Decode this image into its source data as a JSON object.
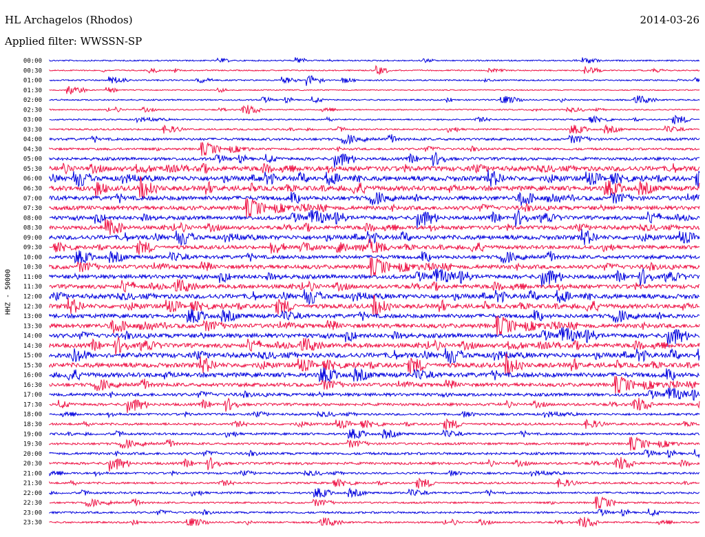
{
  "header": {
    "station": "HL Archagelos (Rhodos)",
    "date": "2014-03-26",
    "filter": "Applied filter: WWSSN-SP"
  },
  "chart_data": {
    "type": "line",
    "title": "HL Archagelos (Rhodos)",
    "date": "2014-03-26",
    "filter": "WWSSN-SP",
    "ylabel": "HHZ - 50000",
    "xlabel": "",
    "colors": {
      "even_rows": "#0000dd",
      "odd_rows": "#ee1144"
    },
    "rows": [
      {
        "label": "00:00",
        "activity": 0.1
      },
      {
        "label": "00:30",
        "activity": 0.08
      },
      {
        "label": "01:00",
        "activity": 0.12
      },
      {
        "label": "01:30",
        "activity": 0.05
      },
      {
        "label": "02:00",
        "activity": 0.12
      },
      {
        "label": "02:30",
        "activity": 0.08
      },
      {
        "label": "03:00",
        "activity": 0.12
      },
      {
        "label": "03:30",
        "activity": 0.18
      },
      {
        "label": "04:00",
        "activity": 0.35
      },
      {
        "label": "04:30",
        "activity": 0.3
      },
      {
        "label": "05:00",
        "activity": 0.45
      },
      {
        "label": "05:30",
        "activity": 0.85
      },
      {
        "label": "06:00",
        "activity": 0.85
      },
      {
        "label": "06:30",
        "activity": 0.85
      },
      {
        "label": "07:00",
        "activity": 0.75
      },
      {
        "label": "07:30",
        "activity": 0.7
      },
      {
        "label": "08:00",
        "activity": 0.65
      },
      {
        "label": "08:30",
        "activity": 0.65
      },
      {
        "label": "09:00",
        "activity": 0.75
      },
      {
        "label": "09:30",
        "activity": 0.6
      },
      {
        "label": "10:00",
        "activity": 0.6
      },
      {
        "label": "10:30",
        "activity": 0.7
      },
      {
        "label": "11:00",
        "activity": 0.7
      },
      {
        "label": "11:30",
        "activity": 0.7
      },
      {
        "label": "12:00",
        "activity": 0.8
      },
      {
        "label": "12:30",
        "activity": 0.75
      },
      {
        "label": "13:00",
        "activity": 0.7
      },
      {
        "label": "13:30",
        "activity": 0.75
      },
      {
        "label": "14:00",
        "activity": 0.75
      },
      {
        "label": "14:30",
        "activity": 0.75
      },
      {
        "label": "15:00",
        "activity": 0.85
      },
      {
        "label": "15:30",
        "activity": 0.8
      },
      {
        "label": "16:00",
        "activity": 0.8
      },
      {
        "label": "16:30",
        "activity": 0.6
      },
      {
        "label": "17:00",
        "activity": 0.5
      },
      {
        "label": "17:30",
        "activity": 0.4
      },
      {
        "label": "18:00",
        "activity": 0.3
      },
      {
        "label": "18:30",
        "activity": 0.3
      },
      {
        "label": "19:00",
        "activity": 0.3
      },
      {
        "label": "19:30",
        "activity": 0.3
      },
      {
        "label": "20:00",
        "activity": 0.35
      },
      {
        "label": "20:30",
        "activity": 0.35
      },
      {
        "label": "21:00",
        "activity": 0.25
      },
      {
        "label": "21:30",
        "activity": 0.25
      },
      {
        "label": "22:00",
        "activity": 0.25
      },
      {
        "label": "22:30",
        "activity": 0.2
      },
      {
        "label": "23:00",
        "activity": 0.25
      },
      {
        "label": "23:30",
        "activity": 0.2
      }
    ]
  }
}
